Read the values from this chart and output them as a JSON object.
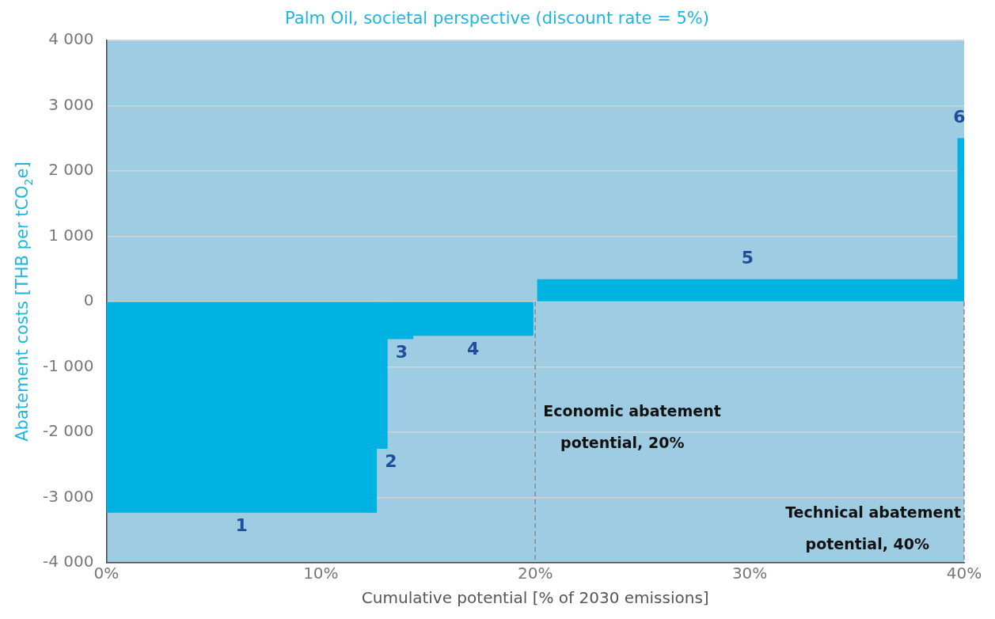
{
  "chart_data": {
    "type": "histogram",
    "title": "Palm Oil, societal perspective (discount rate = 5%)",
    "xlabel": "Cumulative potential [% of 2030 emissions]",
    "ylabel": "Abatement costs [THB per tCO$_{2}$e]",
    "bins": [
      0,
      12.6,
      13.1,
      14.3,
      19.9,
      20.1,
      39.7,
      40
    ],
    "values": [
      -3230,
      -2250,
      -570,
      -520,
      null,
      340,
      2500
    ],
    "color": "#00b2e2",
    "xlim": [
      0,
      40
    ],
    "xticks": [
      {
        "value": 0,
        "label": "0%"
      },
      {
        "value": 10,
        "label": "10%"
      },
      {
        "value": 20,
        "label": "20%"
      },
      {
        "value": 30,
        "label": "30%"
      },
      {
        "value": 40,
        "label": "40%"
      }
    ],
    "ylim": [
      -4000,
      4000
    ],
    "yticks": [
      {
        "value": -4000,
        "label": "-4 000"
      },
      {
        "value": -3000,
        "label": "-3 000"
      },
      {
        "value": -2000,
        "label": "-2 000"
      },
      {
        "value": -1000,
        "label": "-1 000"
      },
      0,
      {
        "value": 1000,
        "label": "1 000"
      },
      {
        "value": 2000,
        "label": "2 000"
      },
      {
        "value": 3000,
        "label": "3 000"
      },
      {
        "value": 4000,
        "label": "4 000"
      }
    ],
    "grid": "y",
    "ref_lines": [
      {
        "axis": "x",
        "value": 20,
        "label": "Economic abatement potential, 20%",
        "line_style": "dashed",
        "color": "#8a8a8a"
      },
      {
        "axis": "x",
        "value": 40,
        "label": "Technical abatement potential, 40%",
        "line_style": "dashed",
        "color": "#8a8a8a"
      }
    ],
    "annotations": [
      "1",
      "2",
      "3",
      "4",
      "5",
      "6"
    ]
  }
}
